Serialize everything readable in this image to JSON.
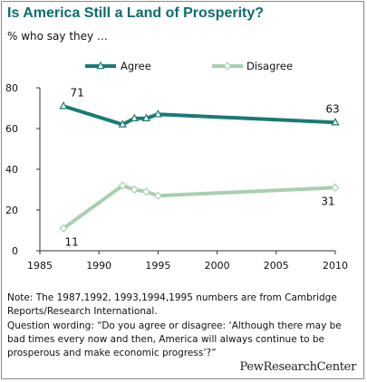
{
  "title": "Is America Still a Land of Prosperity?",
  "subtitle": "% who say they …",
  "notes": {
    "source": "Note: The 1987,1992, 1993,1994,1995 numbers are from Cambridge Reports/Research International.",
    "question": "Question wording: “Do you agree or disagree: ‘Although there may be bad times every now and then, America will always continue to be prosperous and make economic progress’?”"
  },
  "brand": "PewResearchCenter",
  "chart_data": {
    "type": "line",
    "x": [
      1987,
      1992,
      1993,
      1994,
      1995,
      2010
    ],
    "series": [
      {
        "name": "Agree",
        "color": "#1a7a74",
        "marker": "triangle",
        "values": [
          71,
          62,
          65,
          65,
          67,
          63
        ]
      },
      {
        "name": "Disagree",
        "color": "#a8cfb0",
        "marker": "diamond",
        "values": [
          11,
          32,
          30,
          29,
          27,
          31
        ]
      }
    ],
    "data_labels": [
      {
        "series": 0,
        "index": 0,
        "text": "71"
      },
      {
        "series": 0,
        "index": 5,
        "text": "63"
      },
      {
        "series": 1,
        "index": 0,
        "text": "11"
      },
      {
        "series": 1,
        "index": 5,
        "text": "31"
      }
    ],
    "xlim": [
      1985,
      2010
    ],
    "ylim": [
      0,
      80
    ],
    "x_ticks": [
      1985,
      1990,
      1995,
      2000,
      2005,
      2010
    ],
    "y_ticks": [
      0,
      20,
      40,
      60,
      80
    ],
    "grid": false,
    "legend": "top"
  }
}
